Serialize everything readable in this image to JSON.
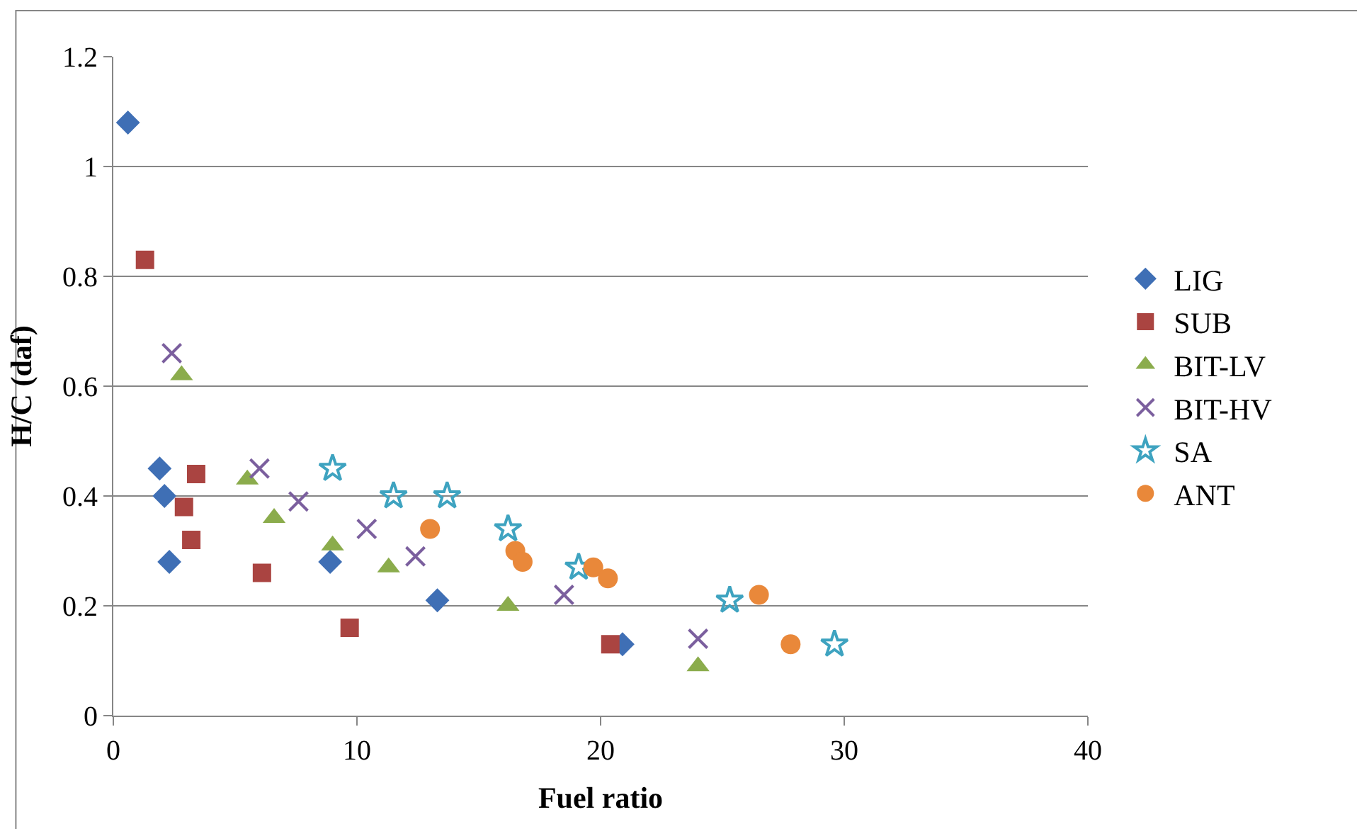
{
  "chart_data": {
    "type": "scatter",
    "xlabel": "Fuel ratio",
    "ylabel": "H/C (daf)",
    "xlim": [
      0,
      40
    ],
    "xticks": [
      0,
      10,
      20,
      30,
      40
    ],
    "ylim": [
      0,
      1.2
    ],
    "yticks": [
      0,
      0.2,
      0.4,
      0.6,
      0.8,
      1,
      1.2
    ],
    "grid": "y",
    "legend": "right",
    "series": [
      {
        "name": "LIG",
        "color": "#3f6fb5",
        "marker": "diamond",
        "x": [
          0.6,
          1.9,
          2.1,
          2.3,
          8.9,
          13.3,
          20.9
        ],
        "values": [
          1.08,
          0.45,
          0.4,
          0.28,
          0.28,
          0.21,
          0.13
        ]
      },
      {
        "name": "SUB",
        "color": "#aa4441",
        "marker": "square",
        "x": [
          1.3,
          3.4,
          2.9,
          3.2,
          6.1,
          9.7,
          20.4
        ],
        "values": [
          0.83,
          0.44,
          0.38,
          0.32,
          0.26,
          0.16,
          0.13
        ]
      },
      {
        "name": "BIT-LV",
        "color": "#8bac4c",
        "marker": "triangle",
        "x": [
          2.8,
          5.5,
          6.6,
          9.0,
          11.3,
          16.2,
          24.0
        ],
        "values": [
          0.62,
          0.43,
          0.36,
          0.31,
          0.27,
          0.2,
          0.09
        ]
      },
      {
        "name": "BIT-HV",
        "color": "#7b5f9e",
        "marker": "cross",
        "x": [
          2.4,
          6.0,
          7.6,
          10.4,
          12.4,
          18.5,
          24.0
        ],
        "values": [
          0.66,
          0.45,
          0.39,
          0.34,
          0.29,
          0.22,
          0.14
        ]
      },
      {
        "name": "SA",
        "color": "#3ea3c0",
        "marker": "star",
        "x": [
          9.0,
          11.5,
          13.7,
          16.2,
          19.1,
          25.3,
          29.6
        ],
        "values": [
          0.45,
          0.4,
          0.4,
          0.34,
          0.27,
          0.21,
          0.13
        ]
      },
      {
        "name": "ANT",
        "color": "#e9883a",
        "marker": "circle",
        "x": [
          13.0,
          16.5,
          16.8,
          19.7,
          20.3,
          26.5,
          27.8
        ],
        "values": [
          0.34,
          0.3,
          0.28,
          0.27,
          0.25,
          0.22,
          0.13
        ]
      }
    ]
  }
}
